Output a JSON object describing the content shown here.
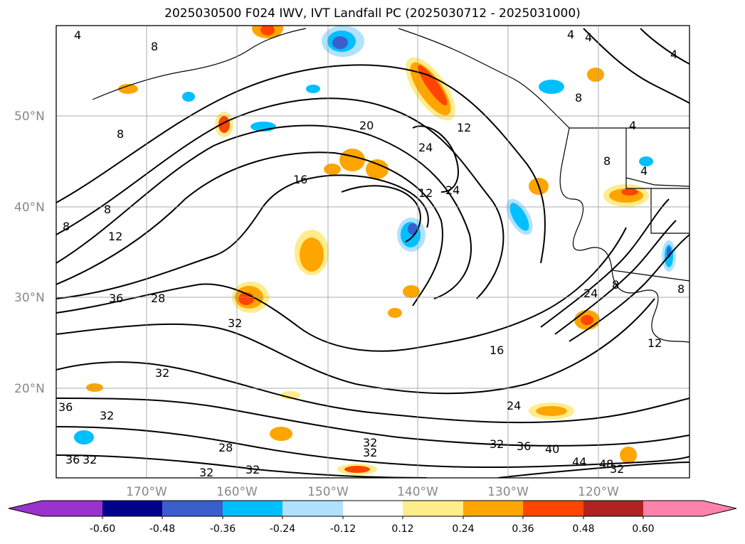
{
  "title": "2025030500 F024 IWV, IVT Landfall PC (2025030712 - 2025031000)",
  "map": {
    "lat_labels": [
      "50°N",
      "40°N",
      "30°N",
      "20°N"
    ],
    "lon_labels": [
      "170°W",
      "160°W",
      "150°W",
      "140°W",
      "130°W",
      "120°W"
    ],
    "contour_labels": [
      "4",
      "8",
      "8",
      "8",
      "8",
      "12",
      "16",
      "20",
      "24",
      "24",
      "12",
      "28",
      "36",
      "32",
      "32",
      "32",
      "36",
      "32",
      "32",
      "36",
      "32",
      "28",
      "32",
      "32",
      "16",
      "24",
      "32",
      "36",
      "40",
      "44",
      "48",
      "32",
      "12",
      "24",
      "8",
      "12",
      "8",
      "4",
      "4",
      "4",
      "4",
      "8",
      "4",
      "8"
    ]
  },
  "colorbar": {
    "tick_labels": [
      "-0.60",
      "-0.48",
      "-0.36",
      "-0.24",
      "-0.12",
      "0.12",
      "0.24",
      "0.36",
      "0.48",
      "0.60"
    ],
    "colors": [
      "#9933cc",
      "#00008b",
      "#3a5fcd",
      "#00bfff",
      "#b0e2ff",
      "#ffffff",
      "#ffec8b",
      "#ffa500",
      "#ff4500",
      "#b22222",
      "#ff82ab"
    ]
  }
}
